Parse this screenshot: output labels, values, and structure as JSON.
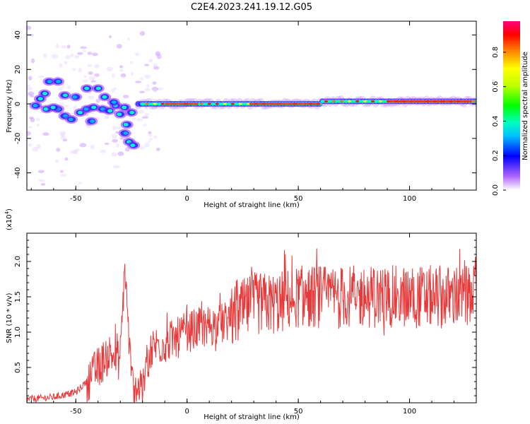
{
  "title": "C2E4.2023.241.19.12.G05",
  "chart_data": [
    {
      "type": "heatmap",
      "xlabel": "Height of straight line (km)",
      "ylabel": "Frequency (Hz)",
      "xlim": [
        -72,
        130
      ],
      "ylim": [
        -50,
        48
      ],
      "xticks": [
        "-50",
        "0",
        "50",
        "100"
      ],
      "yticks": [
        "-40",
        "-20",
        "0",
        "20",
        "40"
      ],
      "colorbar": {
        "label": "Normalized spectral amplitude",
        "range": [
          0,
          0.98
        ],
        "ticks": [
          "0.0",
          "0.2",
          "0.4",
          "0.6",
          "0.8"
        ]
      },
      "features": [
        {
          "x_range": [
            -72,
            -20
          ],
          "y_range": [
            -25,
            15
          ],
          "amplitude": 0.35,
          "description_free": true
        },
        {
          "x_range": [
            -20,
            130
          ],
          "y_center": 1,
          "amplitude": 0.9
        }
      ]
    },
    {
      "type": "line",
      "xlabel": "Height of straight line (km)",
      "ylabel": "SNR (10 * v/v)",
      "y_multiplier": "(x10^4)",
      "xlim": [
        -72,
        130
      ],
      "ylim": [
        0,
        2.4
      ],
      "xticks": [
        "-50",
        "0",
        "50",
        "100"
      ],
      "yticks": [
        "0.5",
        "1.0",
        "1.5",
        "2.0"
      ],
      "series": [
        {
          "color": "#e8393a",
          "points": [
            [
              -72,
              0.05
            ],
            [
              -60,
              0.08
            ],
            [
              -50,
              0.15
            ],
            [
              -45,
              0.3
            ],
            [
              -40,
              0.5
            ],
            [
              -35,
              0.7
            ],
            [
              -30,
              0.6
            ],
            [
              -28,
              1.95
            ],
            [
              -25,
              0.3
            ],
            [
              -20,
              0.15
            ],
            [
              -18,
              0.6
            ],
            [
              -15,
              0.8
            ],
            [
              -10,
              0.85
            ],
            [
              -5,
              0.9
            ],
            [
              0,
              1.0
            ],
            [
              5,
              1.05
            ],
            [
              10,
              1.1
            ],
            [
              15,
              1.1
            ],
            [
              20,
              1.2
            ],
            [
              25,
              1.3
            ],
            [
              30,
              1.4
            ],
            [
              40,
              1.4
            ],
            [
              50,
              1.5
            ],
            [
              60,
              1.5
            ],
            [
              70,
              1.5
            ],
            [
              80,
              1.5
            ],
            [
              90,
              1.5
            ],
            [
              100,
              1.5
            ],
            [
              110,
              1.5
            ],
            [
              120,
              1.5
            ],
            [
              130,
              1.5
            ]
          ]
        }
      ]
    }
  ]
}
